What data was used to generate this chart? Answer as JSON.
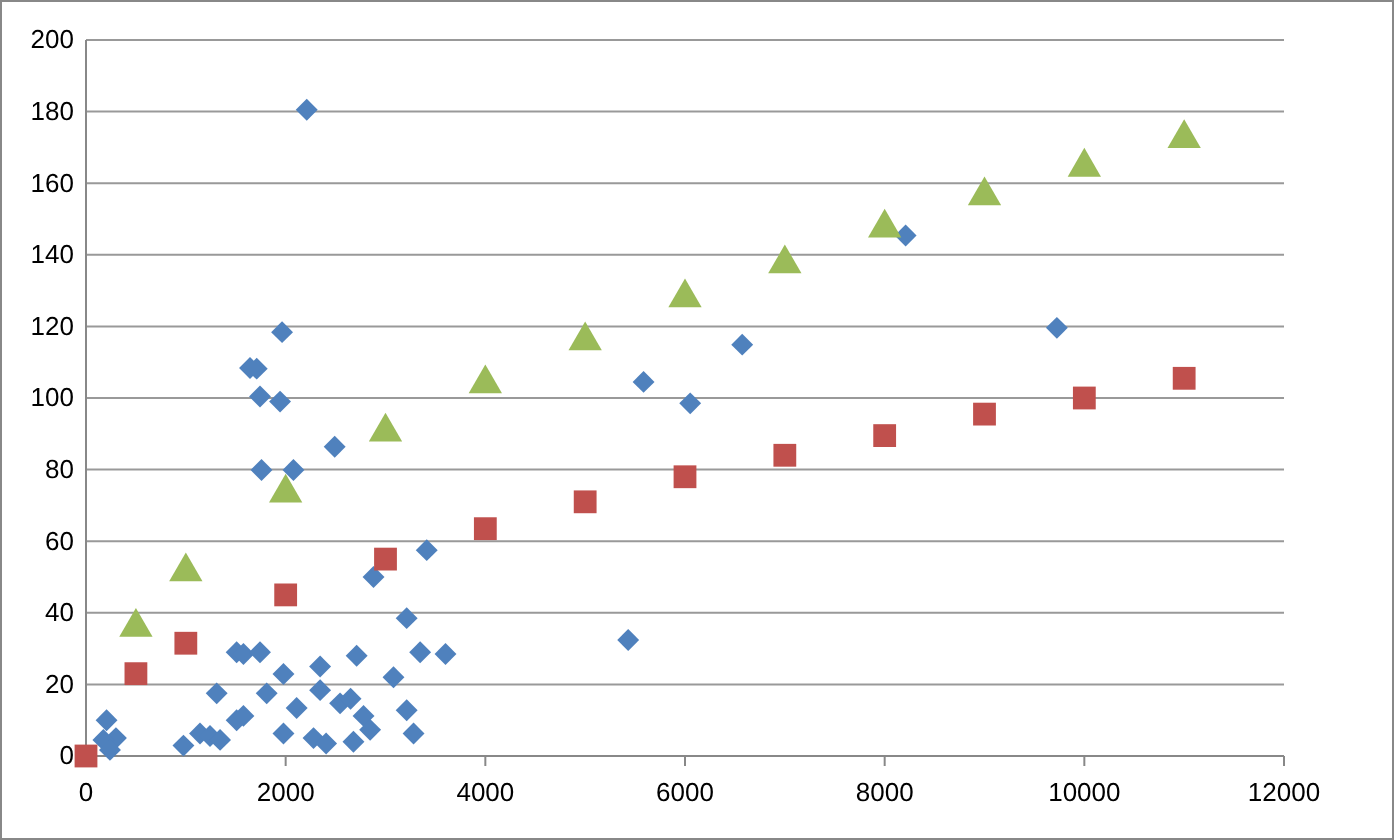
{
  "chart_data": {
    "type": "scatter",
    "xlim": [
      0,
      12000
    ],
    "xticks": [
      0,
      2000,
      4000,
      6000,
      8000,
      10000,
      12000
    ],
    "ylim": [
      0,
      200
    ],
    "yticks": [
      0,
      20,
      40,
      60,
      80,
      100,
      120,
      140,
      160,
      180,
      200
    ],
    "grid": "y",
    "series": [
      {
        "color": "#4f81bd",
        "marker": "diamond",
        "x": [
          206,
          300,
          174,
          240,
          976,
          1142,
          1242,
          1343,
          1309,
          1509,
          1577,
          1743,
          1509,
          1577,
          1810,
          1978,
          1978,
          2110,
          2279,
          2345,
          2345,
          2405,
          2545,
          2679,
          2711,
          2780,
          2846,
          2880,
          3080,
          3212,
          3212,
          3281,
          3347,
          3413,
          3601,
          2650,
          2211,
          1964,
          1710,
          1643,
          1743,
          1944,
          2491,
          1758,
          2078,
          5431,
          8210,
          9725,
          6573,
          5585,
          6052
        ],
        "values": [
          10,
          5,
          4.5,
          1.7,
          2.9,
          6.3,
          5.6,
          4.5,
          17.5,
          29,
          28.5,
          29,
          10,
          11.2,
          17.5,
          22.9,
          6.3,
          13.4,
          5,
          25,
          18.4,
          3.5,
          14.7,
          4,
          28,
          11.2,
          7.3,
          50,
          22,
          38.5,
          12.8,
          6.3,
          29,
          57.5,
          28.5,
          16,
          180.5,
          118.4,
          108.2,
          108.4,
          100.4,
          99,
          86.4,
          79.9,
          79.9,
          32.4,
          145.4,
          119.6,
          114.9,
          104.5,
          98.5
        ]
      },
      {
        "color": "#c0504d",
        "marker": "square",
        "x": [
          0,
          500,
          1000,
          2000,
          3000,
          4000,
          5000,
          6000,
          7000,
          8000,
          9000,
          10000,
          11000
        ],
        "values": [
          0,
          23,
          31.5,
          45,
          55,
          63.5,
          71,
          78,
          84,
          89.5,
          95.5,
          100,
          105.5
        ]
      },
      {
        "color": "#9bbb59",
        "marker": "triangle",
        "x": [
          500,
          1000,
          2000,
          3000,
          4000,
          5000,
          6000,
          7000,
          8000,
          9000,
          10000,
          11000
        ],
        "values": [
          36,
          51.5,
          73.5,
          90.5,
          104,
          116,
          128,
          137.5,
          147.5,
          156.5,
          164.5,
          172.5
        ]
      }
    ]
  }
}
